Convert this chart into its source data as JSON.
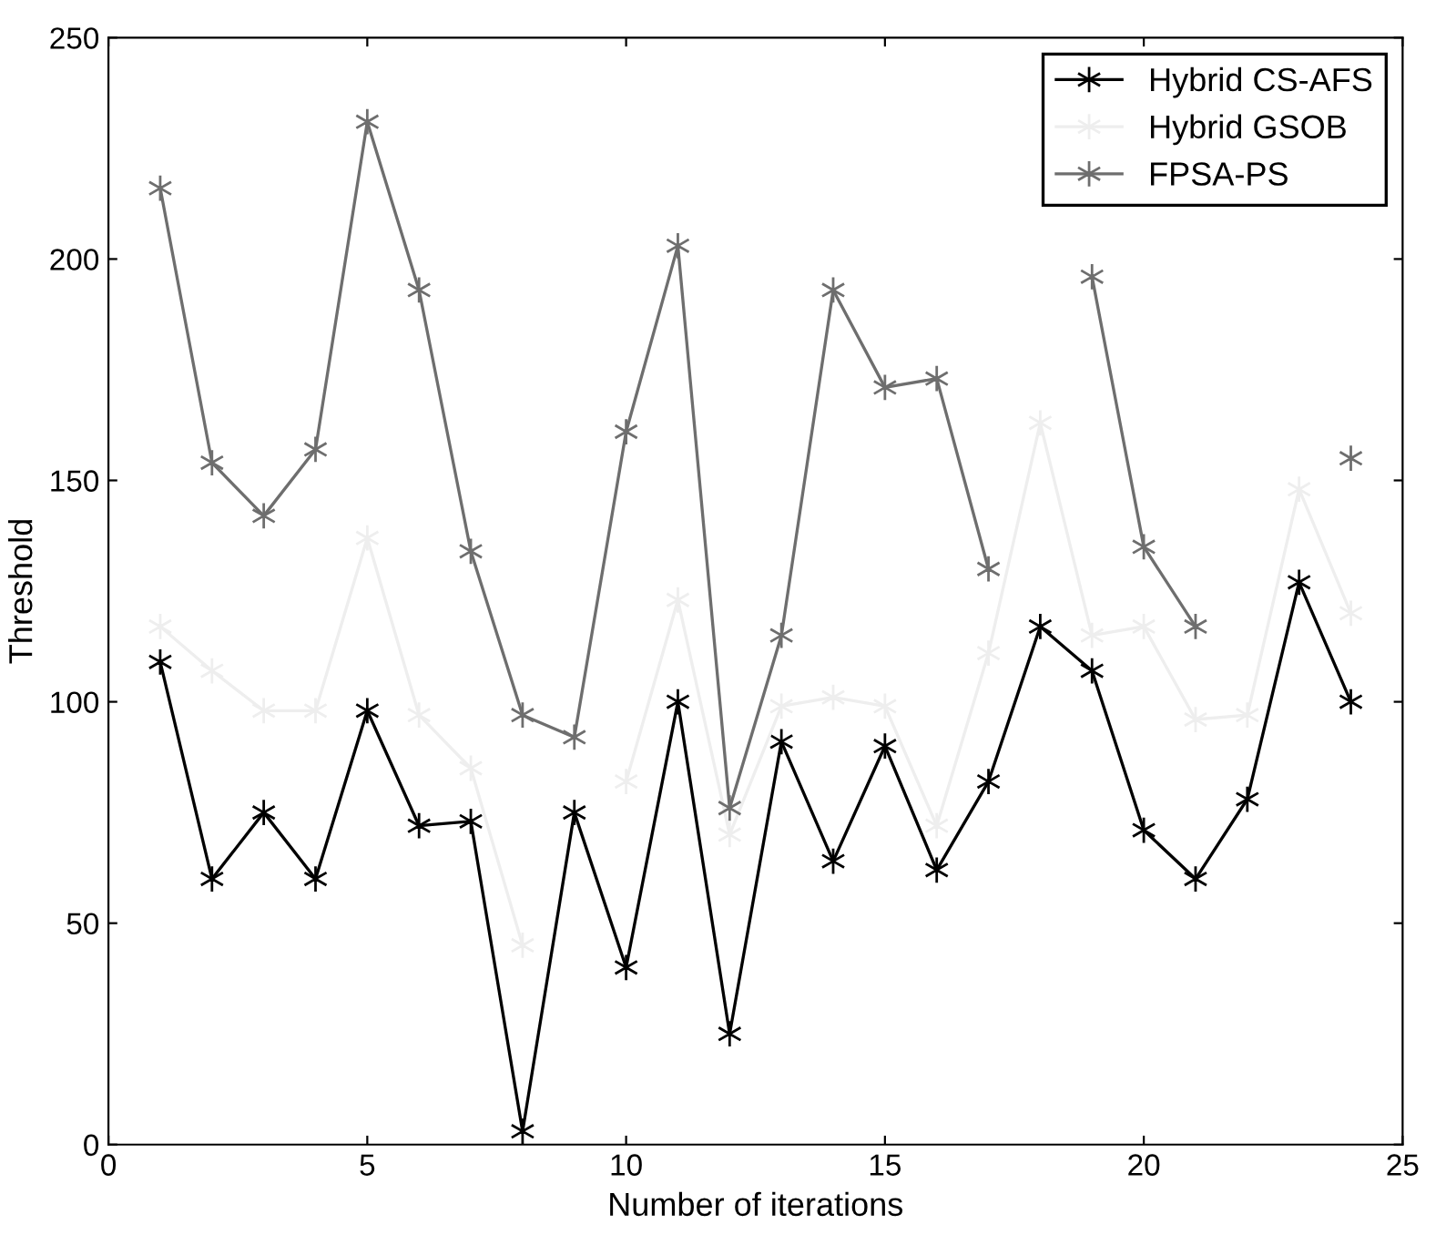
{
  "chart_data": {
    "type": "line",
    "xlabel": "Number of iterations",
    "ylabel": "Threshold",
    "x": [
      1,
      2,
      3,
      4,
      5,
      6,
      7,
      8,
      9,
      10,
      11,
      12,
      13,
      14,
      15,
      16,
      17,
      18,
      19,
      20,
      21,
      22,
      23,
      24
    ],
    "series": [
      {
        "name": "Hybrid CS-AFS",
        "color": "#000000",
        "values": [
          109,
          60,
          75,
          60,
          98,
          72,
          73,
          3,
          75,
          40,
          100,
          25,
          91,
          64,
          90,
          62,
          82,
          117,
          107,
          71,
          60,
          78,
          127,
          100
        ]
      },
      {
        "name": "Hybrid GSOB",
        "color": "#eeeeee",
        "values": [
          117,
          107,
          98,
          98,
          137,
          97,
          85,
          45,
          null,
          82,
          123,
          70,
          99,
          101,
          99,
          72,
          111,
          163,
          115,
          117,
          96,
          97,
          148,
          120
        ]
      },
      {
        "name": "FPSA-PS",
        "color": "#6e6e6e",
        "values": [
          216,
          154,
          142,
          157,
          231,
          193,
          134,
          97,
          92,
          161,
          203,
          76,
          115,
          193,
          171,
          173,
          130,
          null,
          196,
          135,
          117,
          null,
          null,
          155
        ]
      }
    ],
    "xlim": [
      0,
      25
    ],
    "xticks": [
      0,
      5,
      10,
      15,
      20,
      25
    ],
    "ylim": [
      0,
      250
    ],
    "yticks": [
      0,
      50,
      100,
      150,
      200,
      250
    ],
    "grid": false,
    "legend": "top right",
    "marker": "cross",
    "line_style": "solid"
  }
}
